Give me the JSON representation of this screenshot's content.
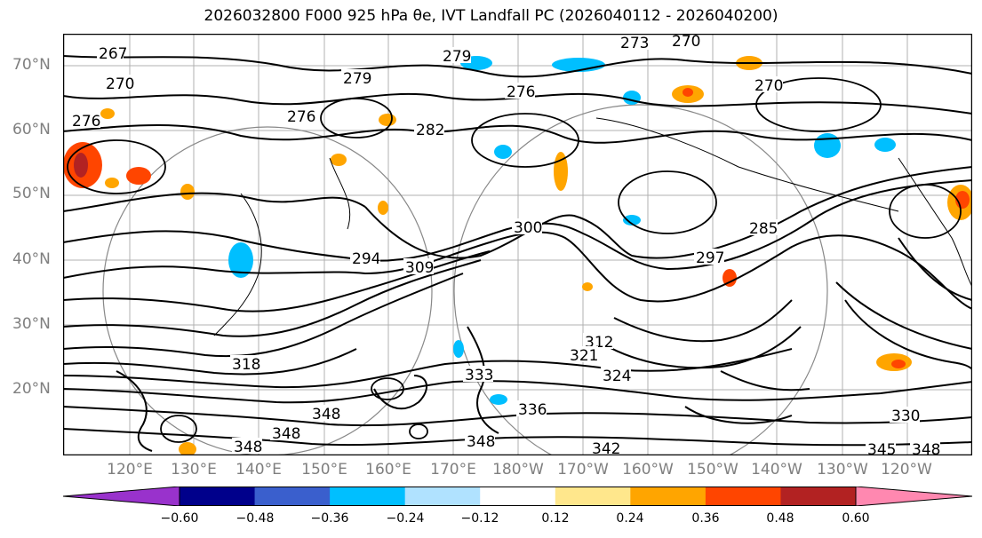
{
  "title": "2026032800 F000 925 hPa θe, IVT Landfall PC (2026040112 - 2026040200)",
  "lat_labels": [
    "70°N",
    "60°N",
    "50°N",
    "40°N",
    "30°N",
    "20°N"
  ],
  "lon_labels": [
    "120°E",
    "130°E",
    "140°E",
    "150°E",
    "160°E",
    "170°E",
    "180°W",
    "170°W",
    "160°W",
    "150°W",
    "140°W",
    "130°W",
    "120°W"
  ],
  "contour_labels": [
    "267",
    "270",
    "273",
    "276",
    "279",
    "282",
    "285",
    "294",
    "297",
    "300",
    "309",
    "312",
    "318",
    "321",
    "324",
    "330",
    "333",
    "336",
    "342",
    "345",
    "348"
  ],
  "colorbar": {
    "tick_labels": [
      "−0.60",
      "−0.48",
      "−0.36",
      "−0.24",
      "−0.12",
      "0.12",
      "0.24",
      "0.36",
      "0.48",
      "0.60"
    ],
    "colors": [
      "#9932cc",
      "#00008b",
      "#3a5fcd",
      "#00bfff",
      "#b0e2ff",
      "#ffffff",
      "#ffe78c",
      "#ffa500",
      "#ff4500",
      "#b22222",
      "#ff88b0"
    ]
  }
}
